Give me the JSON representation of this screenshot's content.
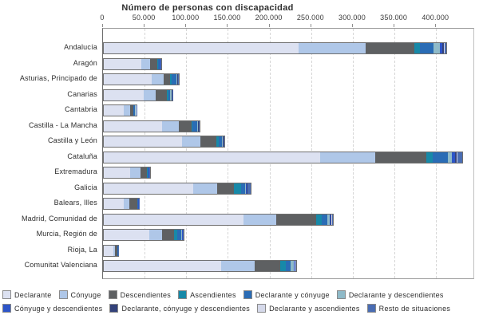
{
  "chart_data": {
    "type": "bar",
    "orientation": "horizontal",
    "stacked": true,
    "title": "Número de personas con discapacidad",
    "x_axis": {
      "position": "top",
      "ticks": [
        0,
        50000,
        100000,
        150000,
        200000,
        250000,
        300000,
        350000,
        400000
      ],
      "tick_labels": [
        "0",
        "50.000",
        "100.000",
        "150.000",
        "200.000",
        "250.000",
        "300.000",
        "350.000",
        "400.000"
      ],
      "range": [
        0,
        445000
      ],
      "gridlines": "dashed-vertical"
    },
    "categories": [
      "Andalucía",
      "Aragón",
      "Asturias, Principado de",
      "Canarias",
      "Cantabria",
      "Castilla - La Mancha",
      "Castilla y León",
      "Cataluña",
      "Extremadura",
      "Galicia",
      "Balears, Illes",
      "Madrid, Comunidad de",
      "Murcia, Región de",
      "Rioja, La",
      "Comunitat Valenciana"
    ],
    "series": [
      {
        "name": "Declarante",
        "color": "#dce1f1",
        "values": [
          234000,
          45000,
          57800,
          47900,
          24300,
          70200,
          94200,
          260200,
          31900,
          107600,
          23900,
          167400,
          54900,
          11100,
          140500
        ]
      },
      {
        "name": "Cónyuge",
        "color": "#afc7e8",
        "values": [
          80500,
          10200,
          14400,
          14700,
          7000,
          19800,
          21400,
          66100,
          11800,
          28700,
          6400,
          39300,
          15300,
          2600,
          40500
        ]
      },
      {
        "name": "Descendientes",
        "color": "#5e6062",
        "values": [
          58500,
          8900,
          7700,
          12800,
          4100,
          15000,
          19800,
          61300,
          8000,
          20000,
          9600,
          47900,
          14100,
          2600,
          31000
        ]
      },
      {
        "name": "Ascendientes",
        "color": "#1789a8",
        "values": [
          6300,
          800,
          1900,
          2600,
          500,
          1500,
          2200,
          7100,
          700,
          8900,
          500,
          7000,
          4100,
          200,
          7000
        ]
      },
      {
        "name": "Declarante y cónyuge",
        "color": "#2a6cb5",
        "values": [
          17000,
          1900,
          5400,
          1200,
          1900,
          5700,
          4100,
          18200,
          1300,
          4100,
          900,
          6400,
          4800,
          300,
          5700
        ]
      },
      {
        "name": "Declarante y descendientes",
        "color": "#8fbac8",
        "values": [
          7100,
          700,
          800,
          2200,
          500,
          900,
          900,
          5400,
          500,
          1500,
          300,
          3500,
          900,
          100,
          3200
        ]
      },
      {
        "name": "Cónyuge y descendientes",
        "color": "#2d55c8",
        "values": [
          3200,
          400,
          500,
          400,
          300,
          500,
          500,
          3200,
          300,
          1000,
          200,
          1200,
          500,
          80,
          1000
        ]
      },
      {
        "name": "Declarante, cónyuge y descendientes",
        "color": "#33427a",
        "values": [
          1500,
          300,
          300,
          300,
          200,
          300,
          300,
          2000,
          200,
          600,
          150,
          700,
          300,
          60,
          600
        ]
      },
      {
        "name": "Declarante y ascendientes",
        "color": "#d5d9ea",
        "values": [
          1000,
          200,
          200,
          200,
          100,
          200,
          200,
          1500,
          100,
          400,
          100,
          500,
          200,
          40,
          400
        ]
      },
      {
        "name": "Resto de situaciones",
        "color": "#4a6db3",
        "values": [
          2000,
          600,
          700,
          500,
          400,
          900,
          800,
          5000,
          400,
          3800,
          400,
          1500,
          700,
          120,
          1600
        ]
      }
    ],
    "legend_position": "bottom",
    "legend_rows": [
      6,
      4
    ]
  }
}
